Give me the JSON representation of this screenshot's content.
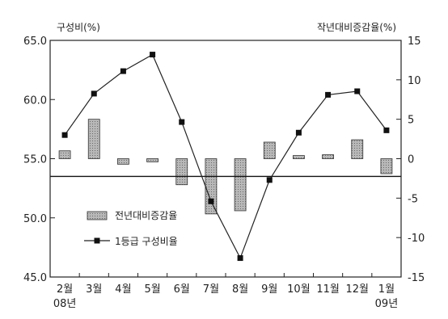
{
  "chart_data": {
    "type": "bar",
    "categories": [
      "2월",
      "3월",
      "4월",
      "5월",
      "6월",
      "7월",
      "8월",
      "9월",
      "10월",
      "11월",
      "12월",
      "1월"
    ],
    "year_labels": [
      {
        "index": 0,
        "text": "08년"
      },
      {
        "index": 11,
        "text": "09년"
      }
    ],
    "left_axis": {
      "label": "구성비(%)",
      "ylim": [
        45.0,
        65.0
      ],
      "ticks": [
        "65.0",
        "60.0",
        "55.0",
        "50.0",
        "45.0"
      ],
      "tick_values": [
        65,
        60,
        55,
        50,
        45
      ]
    },
    "right_axis": {
      "label": "작년대비증감율(%)",
      "ylim": [
        -15,
        15
      ],
      "ticks": [
        "15",
        "10",
        "5",
        "0",
        "-5",
        "-10",
        "-15"
      ],
      "tick_values": [
        15,
        10,
        5,
        0,
        -5,
        -10,
        -15
      ]
    },
    "series": [
      {
        "name": "전년대비증감율",
        "type": "bar",
        "axis": "right",
        "values": [
          1.0,
          5.0,
          -0.7,
          -0.4,
          -3.3,
          -7.0,
          -6.6,
          2.1,
          0.4,
          0.5,
          2.4,
          -1.9
        ]
      },
      {
        "name": "1등급 구성비율",
        "type": "line",
        "axis": "left",
        "values": [
          57.0,
          60.5,
          62.4,
          63.8,
          58.1,
          51.4,
          46.6,
          53.2,
          57.2,
          60.4,
          60.7,
          57.4
        ]
      }
    ],
    "reference_line": {
      "axis": "left",
      "value": 53.5
    },
    "legend": {
      "position": "lower-left"
    },
    "grid": false
  }
}
